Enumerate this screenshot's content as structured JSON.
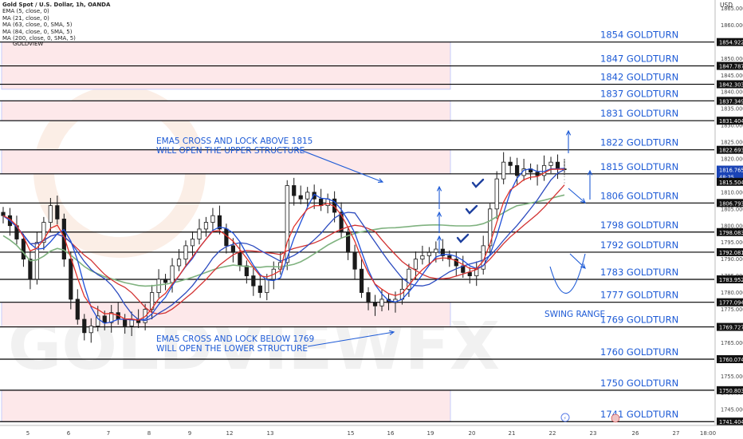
{
  "chart": {
    "symbol_title": "Gold Spot / U.S. Dollar, 1h, OANDA",
    "indicators": [
      "EMA (5, close, 0)",
      "MA (21, close, 0)",
      "MA (63, close, 0, SMA, 5)",
      "MA (84, close, 0, SMA, 5)",
      "MA (200, close, 0, SMA, 5)"
    ],
    "brand": "GOLDVIEW",
    "currency": "USD"
  },
  "chart_data": {
    "type": "candlestick",
    "x_ticks": [
      "5",
      "6",
      "7",
      "8",
      "9",
      "12",
      "13",
      "15",
      "16",
      "19",
      "20",
      "21",
      "22",
      "23",
      "26",
      "27",
      "18:00"
    ],
    "y_ticks": [
      1745,
      1750,
      1755,
      1760,
      1765,
      1770,
      1775,
      1780,
      1785,
      1790,
      1795,
      1800,
      1805,
      1810,
      1815,
      1820,
      1825,
      1830,
      1835,
      1840,
      1845,
      1850,
      1855,
      1860,
      1865
    ],
    "ylim": [
      1740.5,
      1867.5
    ],
    "price_close": [
      1803,
      1800,
      1796,
      1790,
      1784,
      1795,
      1801,
      1806,
      1802,
      1790,
      1778,
      1772,
      1768,
      1770,
      1773,
      1771,
      1774,
      1772,
      1770,
      1772,
      1771,
      1775,
      1780,
      1784,
      1783,
      1788,
      1790,
      1794,
      1796,
      1799,
      1801,
      1803,
      1799,
      1794,
      1792,
      1788,
      1785,
      1782,
      1780,
      1784,
      1787,
      1789,
      1812,
      1809,
      1808,
      1810,
      1808,
      1806,
      1808,
      1804,
      1798,
      1792,
      1787,
      1780,
      1777,
      1776,
      1778,
      1777,
      1778,
      1781,
      1787,
      1790,
      1791,
      1792,
      1793,
      1791,
      1790,
      1788,
      1786,
      1785,
      1787,
      1794,
      1805,
      1814,
      1819,
      1818,
      1815,
      1817,
      1816,
      1815,
      1818,
      1819,
      1817,
      1816.8
    ],
    "last_price": "1816.765",
    "countdown": "48:25",
    "bid_price": "1815.504",
    "price_labels": [
      "1854.922",
      "1847.787",
      "1842.303",
      "1837.349",
      "1831.404",
      "1822.693",
      "1806.793",
      "1798.083",
      "1792.081",
      "1783.952",
      "1777.094",
      "1769.727",
      "1760.074",
      "1750.803",
      "1741.404"
    ],
    "goldturn_levels": [
      {
        "label": "1854 GOLDTURN",
        "price": 1854.922
      },
      {
        "label": "1847 GOLDTURN",
        "price": 1847.787
      },
      {
        "label": "1842 GOLDTURN",
        "price": 1842.303
      },
      {
        "label": "1837 GOLDTURN",
        "price": 1837.349
      },
      {
        "label": "1831 GOLDTURN",
        "price": 1831.404
      },
      {
        "label": "1822 GOLDTURN",
        "price": 1822.693
      },
      {
        "label": "1815 GOLDTURN",
        "price": 1815.504
      },
      {
        "label": "1806 GOLDTURN",
        "price": 1806.793
      },
      {
        "label": "1798 GOLDTURN",
        "price": 1798.083
      },
      {
        "label": "1792 GOLDTURN",
        "price": 1792.081
      },
      {
        "label": "1783 GOLDTURN",
        "price": 1783.952
      },
      {
        "label": "1777 GOLDTURN",
        "price": 1777.094
      },
      {
        "label": "1769 GOLDTURN",
        "price": 1769.727
      },
      {
        "label": "1760 GOLDTURN",
        "price": 1760.074
      },
      {
        "label": "1750 GOLDTURN",
        "price": 1750.803
      },
      {
        "label": "1741 GOLDTURN",
        "price": 1741.404
      }
    ],
    "zones": [
      {
        "from": 1837.349,
        "to": 1831.404
      },
      {
        "from": 1822.693,
        "to": 1815.504
      },
      {
        "from": 1777.094,
        "to": 1769.727
      },
      {
        "from": 1750.803,
        "to": 1741.404
      }
    ],
    "annotations": {
      "upper_note": [
        "EMA5 CROSS AND LOCK ABOVE 1815",
        "WILL OPEN THE UPPER STRUCTURE"
      ],
      "lower_note": [
        "EMA5 CROSS AND LOCK BELOW 1769",
        "WILL OPEN THE LOWER STRUCTURE"
      ],
      "swing_range": "SWING RANGE"
    },
    "colors": {
      "candle_up": "#1a1a1a",
      "candle_down": "#1a1a1a",
      "ema5": "#e0312a",
      "ma21": "#1f4fd8",
      "ma63": "#d23232",
      "ma84": "#2c4bbf",
      "ma200": "#7fb27f",
      "annotation": "#1e5bd6",
      "zone_fill": "#fde8ea",
      "zone_border": "#b8c4ff",
      "level_line": "#000000",
      "last_price_tag": "#1a43b5"
    }
  }
}
